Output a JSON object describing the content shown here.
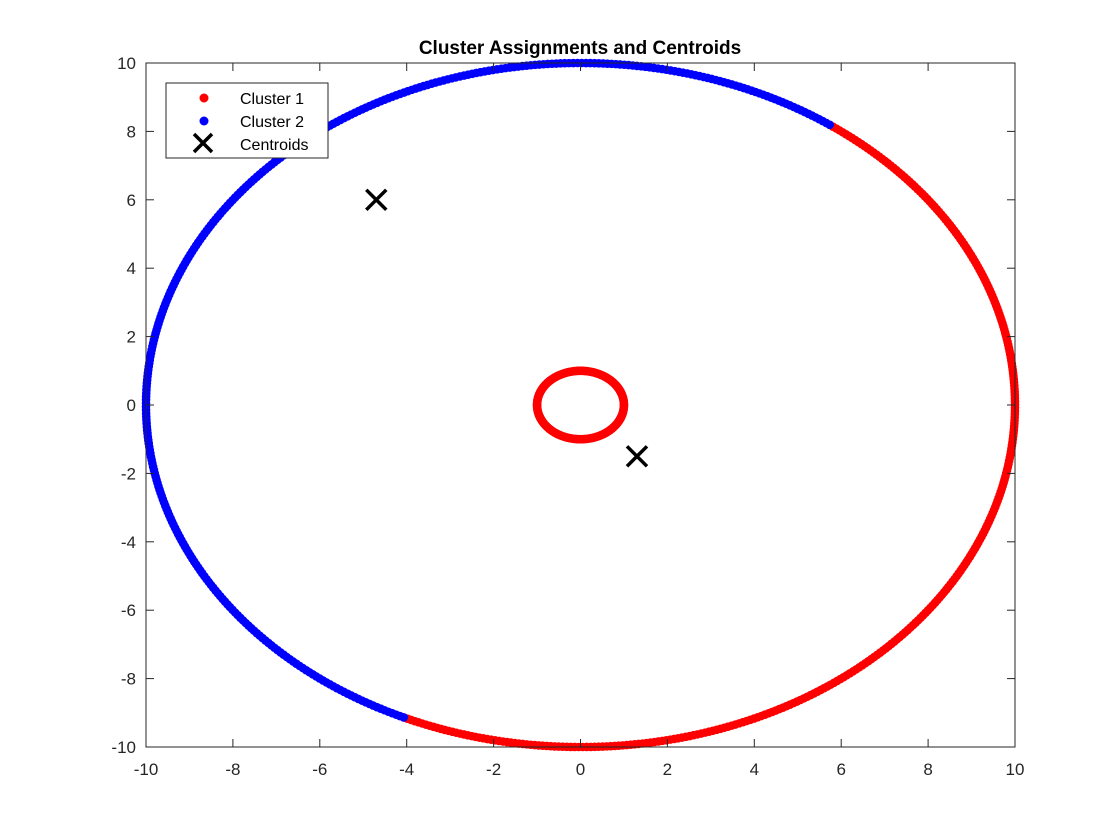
{
  "chart_data": {
    "type": "scatter",
    "title": "Cluster Assignments and Centroids",
    "xlabel": "",
    "ylabel": "",
    "xlim": [
      -10,
      10
    ],
    "ylim": [
      -10,
      10
    ],
    "xticks": [
      -10,
      -8,
      -6,
      -4,
      -2,
      0,
      2,
      4,
      6,
      8,
      10
    ],
    "yticks": [
      -10,
      -8,
      -6,
      -4,
      -2,
      0,
      2,
      4,
      6,
      8,
      10
    ],
    "grid": false,
    "legend_position": "top-left",
    "series": [
      {
        "name": "Cluster 1",
        "color": "#ff0000",
        "marker": "dot",
        "shape": "two circles centered at (0, 0): inner radius 1, outer radius 10 arc from angle -114 to 55 degrees (right side)",
        "points": [
          {
            "x": 1.0,
            "y": 0.0
          },
          {
            "x": 0.71,
            "y": 0.71
          },
          {
            "x": 0.0,
            "y": 1.0
          },
          {
            "x": -0.71,
            "y": 0.71
          },
          {
            "x": -1.0,
            "y": 0.0
          },
          {
            "x": -0.71,
            "y": -0.71
          },
          {
            "x": 0.0,
            "y": -1.0
          },
          {
            "x": 0.71,
            "y": -0.71
          },
          {
            "x": -4.07,
            "y": -9.14
          },
          {
            "x": -2.0,
            "y": -9.8
          },
          {
            "x": 0.0,
            "y": -10.0
          },
          {
            "x": 2.0,
            "y": -9.8
          },
          {
            "x": 4.2,
            "y": -9.08
          },
          {
            "x": 6.0,
            "y": -8.0
          },
          {
            "x": 7.6,
            "y": -6.5
          },
          {
            "x": 8.8,
            "y": -4.75
          },
          {
            "x": 9.6,
            "y": -2.8
          },
          {
            "x": 10.0,
            "y": 0.0
          },
          {
            "x": 9.7,
            "y": 2.43
          },
          {
            "x": 8.91,
            "y": 4.54
          },
          {
            "x": 7.66,
            "y": 6.43
          },
          {
            "x": 5.74,
            "y": 8.19
          }
        ]
      },
      {
        "name": "Cluster 2",
        "color": "#0000ff",
        "marker": "dot",
        "shape": "outer circle radius 10 centered at (0, 0), arc from angle 55 to 246 degrees (upper-left side)",
        "points": [
          {
            "x": 5.74,
            "y": 8.19
          },
          {
            "x": 4.0,
            "y": 9.17
          },
          {
            "x": 2.0,
            "y": 9.8
          },
          {
            "x": 0.0,
            "y": 10.0
          },
          {
            "x": -2.0,
            "y": 9.8
          },
          {
            "x": -4.0,
            "y": 9.17
          },
          {
            "x": -6.0,
            "y": 8.0
          },
          {
            "x": -7.66,
            "y": 6.43
          },
          {
            "x": -8.91,
            "y": 4.54
          },
          {
            "x": -9.7,
            "y": 2.43
          },
          {
            "x": -10.0,
            "y": 0.0
          },
          {
            "x": -9.7,
            "y": -2.4
          },
          {
            "x": -9.14,
            "y": -4.07
          }
        ]
      },
      {
        "name": "Centroids",
        "color": "#000000",
        "marker": "x",
        "points": [
          {
            "x": -4.7,
            "y": 6.0
          },
          {
            "x": 1.3,
            "y": -1.5
          }
        ]
      }
    ],
    "render": {
      "outer_radius": 10,
      "inner_radius": 1,
      "cluster1_arc_deg": [
        -114,
        55
      ],
      "cluster2_arc_deg": [
        55,
        246
      ]
    }
  }
}
